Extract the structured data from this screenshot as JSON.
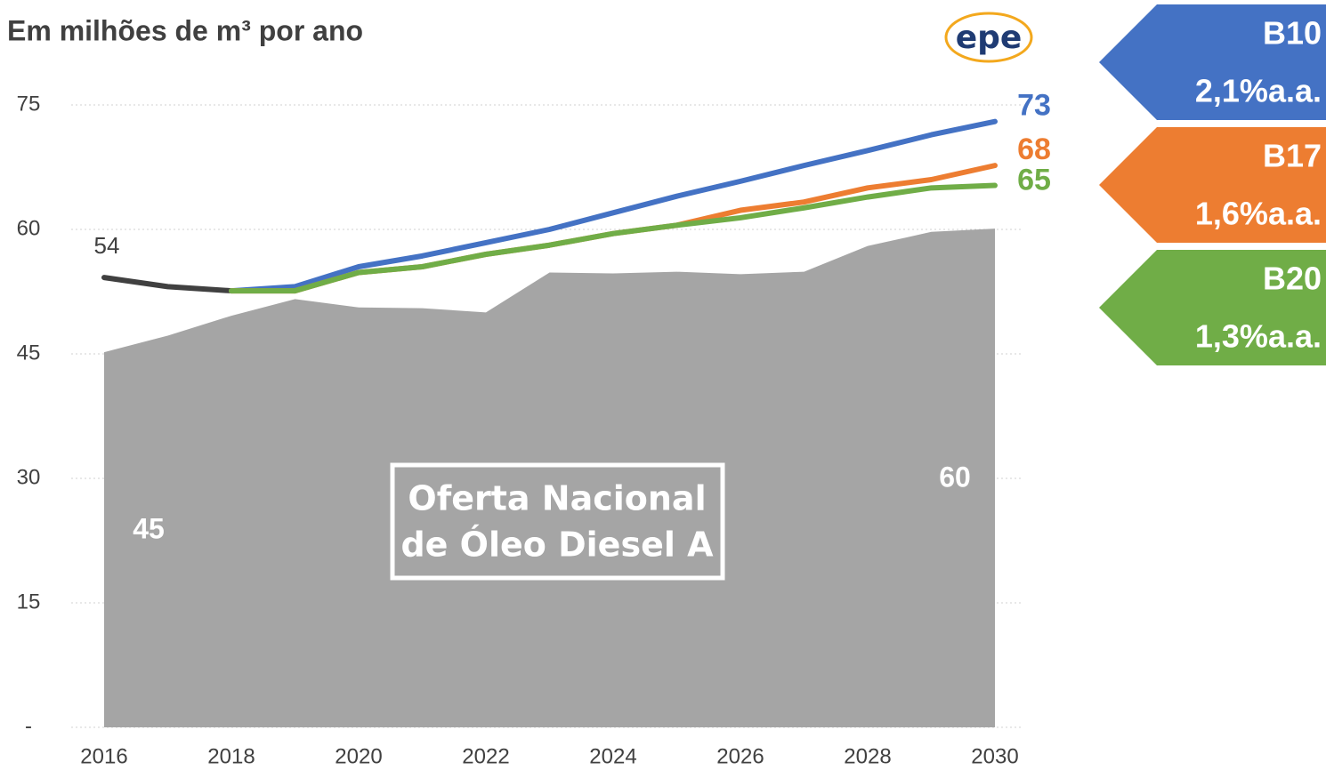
{
  "chart_data": {
    "type": "line",
    "title": "Em milhões de m³ por ano",
    "logo": "epe",
    "annotation": [
      "Oferta Nacional",
      "de Óleo Diesel A"
    ],
    "x": [
      2016,
      2017,
      2018,
      2019,
      2020,
      2021,
      2022,
      2023,
      2024,
      2025,
      2026,
      2027,
      2028,
      2029,
      2030
    ],
    "xlim": [
      2016,
      2030
    ],
    "xticks": [
      2016,
      2018,
      2020,
      2022,
      2024,
      2026,
      2028,
      2030
    ],
    "ylim": [
      0,
      75
    ],
    "yticks": [
      {
        "value": 0,
        "label": "-"
      },
      15,
      30,
      45,
      60,
      75
    ],
    "grid": true,
    "series": [
      {
        "style": "area",
        "color": "#a5a5a5",
        "values": [
          45.2,
          47.2,
          49.6,
          51.6,
          50.6,
          50.5,
          50.0,
          54.8,
          54.7,
          54.9,
          54.6,
          54.9,
          58.0,
          59.7,
          60.1
        ],
        "value_labels": [
          "45",
          null,
          null,
          null,
          null,
          null,
          null,
          null,
          null,
          null,
          null,
          null,
          null,
          null,
          "60"
        ]
      },
      {
        "style": "line",
        "color": "#404040",
        "values": [
          54.2,
          53.1,
          52.6,
          null,
          null,
          null,
          null,
          null,
          null,
          null,
          null,
          null,
          null,
          null,
          null
        ],
        "value_labels": [
          "54",
          null,
          null,
          null,
          null,
          null,
          null,
          null,
          null,
          null,
          null,
          null,
          null,
          null,
          null
        ]
      },
      {
        "style": "line",
        "name": "B10",
        "growth": "2,1%a.a.",
        "color": "#4472c4",
        "values": [
          null,
          null,
          52.6,
          53.1,
          55.5,
          56.8,
          58.4,
          60.0,
          62.0,
          64.0,
          65.8,
          67.7,
          69.5,
          71.4,
          73.0
        ],
        "value_labels": [
          null,
          null,
          null,
          null,
          null,
          null,
          null,
          null,
          null,
          null,
          null,
          null,
          null,
          null,
          "73"
        ]
      },
      {
        "style": "line",
        "name": "B17",
        "growth": "1,6%a.a.",
        "color": "#ed7d31",
        "values": [
          null,
          null,
          52.6,
          52.6,
          54.8,
          55.5,
          57.0,
          58.1,
          59.5,
          60.5,
          62.3,
          63.3,
          65.0,
          66.0,
          67.7
        ],
        "value_labels": [
          null,
          null,
          null,
          null,
          null,
          null,
          null,
          null,
          null,
          null,
          null,
          null,
          null,
          null,
          "68"
        ]
      },
      {
        "style": "line",
        "name": "B20",
        "growth": "1,3%a.a.",
        "color": "#70ad47",
        "values": [
          null,
          null,
          52.6,
          52.6,
          54.8,
          55.5,
          57.0,
          58.1,
          59.5,
          60.5,
          61.4,
          62.6,
          63.9,
          65.0,
          65.3
        ],
        "value_labels": [
          null,
          null,
          null,
          null,
          null,
          null,
          null,
          null,
          null,
          null,
          null,
          null,
          null,
          null,
          "65"
        ]
      }
    ]
  }
}
